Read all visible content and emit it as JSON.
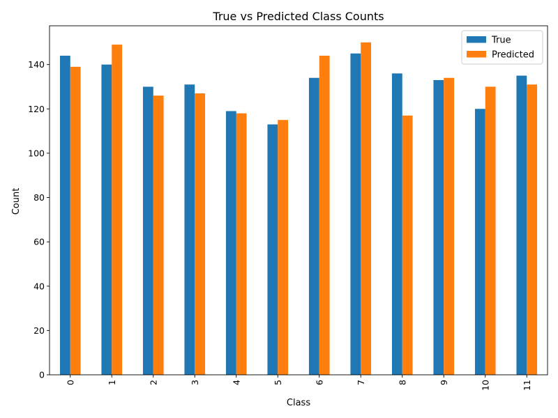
{
  "chart_data": {
    "type": "bar",
    "title": "True vs Predicted Class Counts",
    "xlabel": "Class",
    "ylabel": "Count",
    "categories": [
      "0",
      "1",
      "2",
      "3",
      "4",
      "5",
      "6",
      "7",
      "8",
      "9",
      "10",
      "11"
    ],
    "series": [
      {
        "name": "True",
        "color": "#1f77b4",
        "values": [
          144,
          140,
          130,
          131,
          119,
          113,
          134,
          145,
          136,
          133,
          120,
          135
        ]
      },
      {
        "name": "Predicted",
        "color": "#ff7f0e",
        "values": [
          139,
          149,
          126,
          127,
          118,
          115,
          144,
          150,
          117,
          134,
          130,
          131
        ]
      }
    ],
    "ylim": [
      0,
      157.5
    ],
    "yticks": [
      0,
      20,
      40,
      60,
      80,
      100,
      120,
      140
    ],
    "grid": false,
    "legend": "top-right",
    "xtick_rotation": "vertical"
  }
}
